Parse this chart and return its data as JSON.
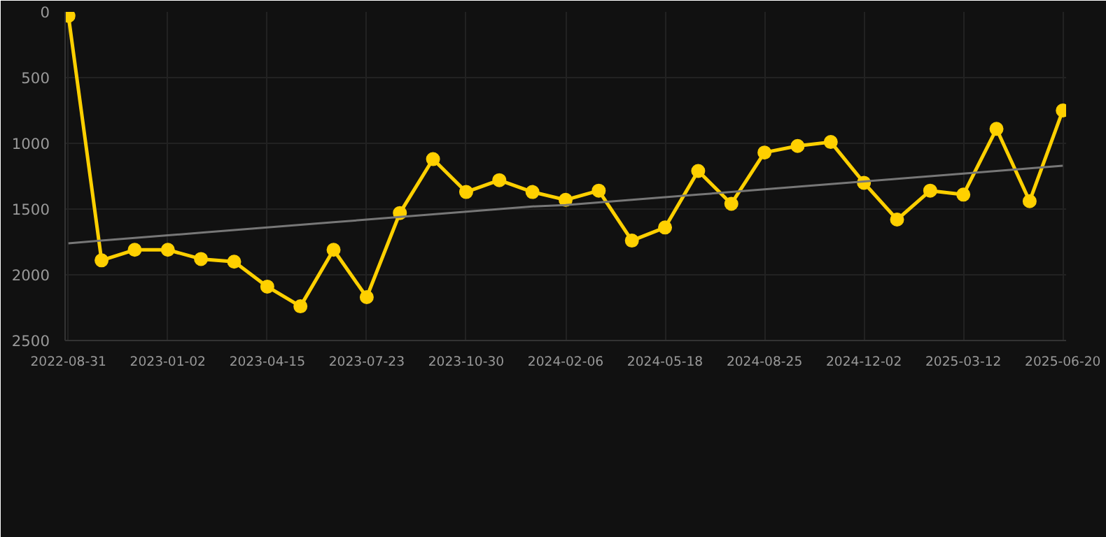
{
  "chart_data": {
    "type": "line",
    "categories": [
      "2022-08-31",
      null,
      null,
      "2023-01-02",
      null,
      null,
      "2023-04-15",
      null,
      null,
      "2023-07-23",
      null,
      null,
      "2023-10-30",
      null,
      null,
      "2024-02-06",
      null,
      null,
      "2024-05-18",
      null,
      null,
      "2024-08-25",
      null,
      null,
      "2024-12-02",
      null,
      null,
      "2025-03-12",
      null,
      null,
      "2025-06-20"
    ],
    "series": [
      {
        "color": "#ffd000",
        "marker": "circle",
        "values": [
          30,
          1890,
          1810,
          1810,
          1880,
          1900,
          2090,
          2240,
          1810,
          2170,
          1530,
          1120,
          1370,
          1280,
          1370,
          1430,
          1360,
          1740,
          1640,
          1210,
          1460,
          1070,
          1020,
          990,
          1300,
          1580,
          1360,
          1390,
          890,
          1440,
          750
        ]
      },
      {
        "type": "line",
        "color": "#777777",
        "marker": "none",
        "values": [
          1760,
          1740,
          1720,
          1700,
          1680,
          1660,
          1640,
          1620,
          1600,
          1580,
          1560,
          1540,
          1520,
          1500,
          1480,
          1470,
          1450,
          1430,
          1410,
          1390,
          1370,
          1350,
          1330,
          1310,
          1290,
          1270,
          1250,
          1230,
          1210,
          1190,
          1170
        ]
      }
    ],
    "ylim": [
      2500,
      0
    ],
    "yticks": [
      0,
      500,
      1000,
      1500,
      2000,
      2500
    ],
    "grid": true,
    "line_style": "solid"
  }
}
